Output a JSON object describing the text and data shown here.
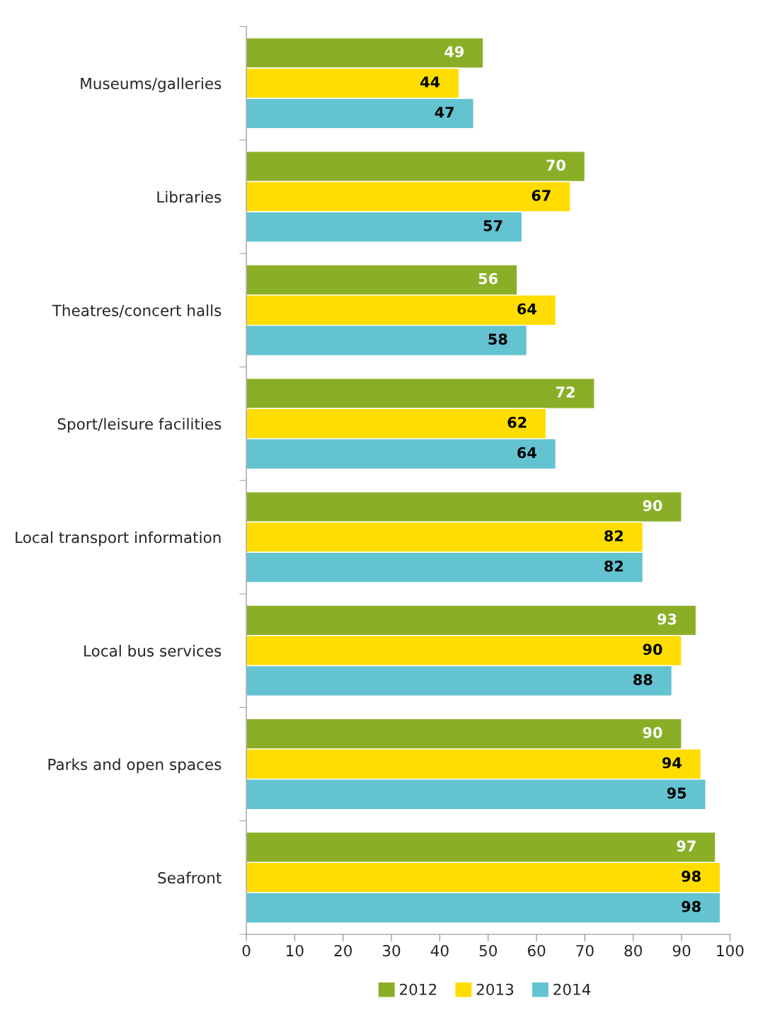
{
  "chart_data": {
    "type": "bar",
    "orientation": "horizontal",
    "categories": [
      "Museums/galleries",
      "Libraries",
      "Theatres/concert halls",
      "Sport/leisure facilities",
      "Local transport information",
      "Local bus services",
      "Parks and open spaces",
      "Seafront"
    ],
    "series": [
      {
        "name": "2012",
        "color": "#8aaf27",
        "values": [
          49,
          70,
          56,
          72,
          90,
          93,
          90,
          97
        ]
      },
      {
        "name": "2013",
        "color": "#ffdd00",
        "values": [
          44,
          67,
          64,
          62,
          82,
          90,
          94,
          98
        ]
      },
      {
        "name": "2014",
        "color": "#63c3d1",
        "values": [
          47,
          57,
          58,
          64,
          82,
          88,
          95,
          98
        ]
      }
    ],
    "xlim": [
      0,
      100
    ],
    "xticks": [
      0,
      10,
      20,
      30,
      40,
      50,
      60,
      70,
      80,
      90,
      100
    ],
    "data_labels": true,
    "grid": false,
    "legend": "bottom"
  }
}
